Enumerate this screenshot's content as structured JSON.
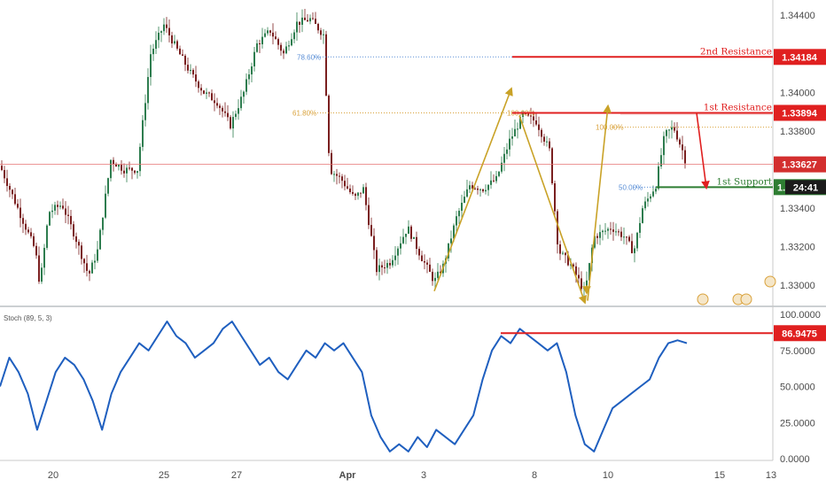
{
  "chart_data": [
    {
      "type": "candlestick",
      "price_axis": {
        "ticks": [
          "1.34400",
          "1.34000",
          "1.33800",
          "1.33400",
          "1.33200",
          "1.33000"
        ],
        "ylim": [
          1.329,
          1.3447
        ]
      },
      "time_axis": {
        "ticks": [
          "20",
          "25",
          "27",
          "Apr",
          "3",
          "8",
          "10",
          "15",
          "13"
        ]
      },
      "levels": [
        {
          "name": "2nd Resistance",
          "value": "1.34184",
          "color": "#e02020"
        },
        {
          "name": "1st Resistance",
          "value": "1.33894",
          "color": "#e02020"
        },
        {
          "name": "1st Support",
          "value": "1.33509",
          "color": "#2e7d32"
        }
      ],
      "current_price": {
        "value": "1.33627",
        "color": "#d32f2f"
      },
      "countdown": "24:41",
      "countdown_prefix": "1.",
      "fib_labels": [
        "78.60%",
        "61.80%",
        "100.00%",
        "100.00%",
        "50.00%"
      ]
    },
    {
      "type": "line",
      "title": "Stoch (89, 5, 3)",
      "y_ticks": [
        "100.0000",
        "75.0000",
        "50.0000",
        "25.0000",
        "0.0000"
      ],
      "ylim": [
        0,
        100
      ],
      "resistance_value": "86.9475",
      "series_color": "#1f5fbf",
      "values": [
        50,
        70,
        60,
        45,
        20,
        40,
        60,
        70,
        65,
        55,
        40,
        20,
        45,
        60,
        70,
        80,
        75,
        85,
        95,
        85,
        80,
        70,
        75,
        80,
        90,
        95,
        85,
        75,
        65,
        70,
        60,
        55,
        65,
        75,
        70,
        80,
        75,
        80,
        70,
        60,
        30,
        15,
        5,
        10,
        5,
        15,
        8,
        20,
        15,
        10,
        20,
        30,
        55,
        75,
        85,
        80,
        90,
        85,
        80,
        75,
        80,
        60,
        30,
        10,
        5,
        20,
        35,
        40,
        45,
        50,
        55,
        70,
        80,
        82,
        80
      ]
    }
  ]
}
